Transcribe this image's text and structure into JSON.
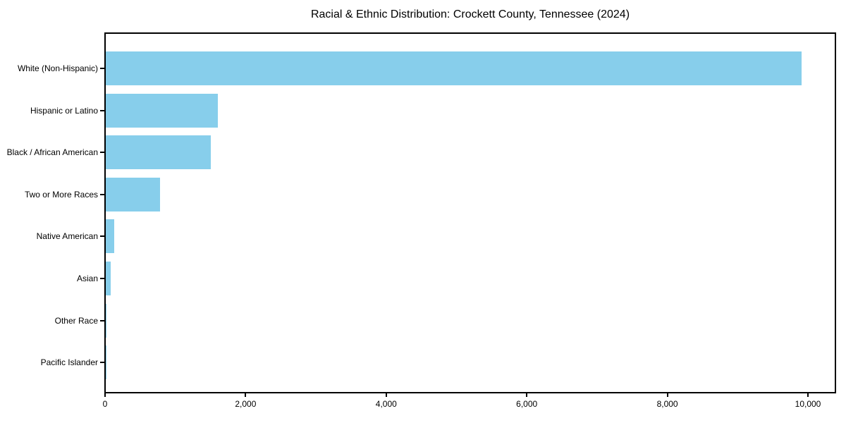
{
  "chart_data": {
    "type": "bar",
    "orientation": "horizontal",
    "title": "Racial & Ethnic Distribution: Crockett County, Tennessee (2024)",
    "categories": [
      "White (Non-Hispanic)",
      "Hispanic or Latino",
      "Black / African American",
      "Two or More Races",
      "Native American",
      "Asian",
      "Other Race",
      "Pacific Islander"
    ],
    "values": [
      9900,
      1590,
      1490,
      770,
      120,
      70,
      10,
      5
    ],
    "xlabel": "",
    "ylabel": "",
    "xlim": [
      0,
      10400
    ],
    "xticks": [
      0,
      2000,
      4000,
      6000,
      8000,
      10000
    ],
    "xtick_labels": [
      "0",
      "2,000",
      "4,000",
      "6,000",
      "8,000",
      "10,000"
    ],
    "grid": false,
    "legend": null,
    "bar_color": "#87CEEB",
    "axis_color": "#000000",
    "background_color": "#ffffff"
  }
}
